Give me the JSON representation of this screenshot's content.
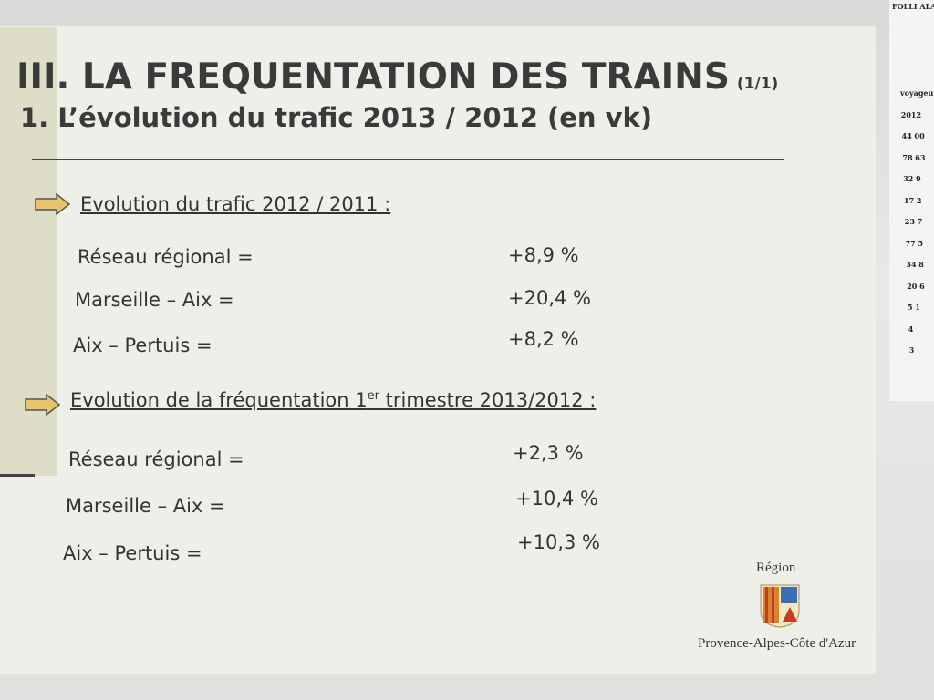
{
  "slide": {
    "title": "III. LA FREQUENTATION DES TRAINS",
    "title_suffix": "(1/1)",
    "subtitle": "1. L’évolution du trafic 2013 / 2012 (en vk)",
    "sections": [
      {
        "heading": "Evolution du trafic 2012 / 2011 :",
        "rows": [
          [
            "Réseau régional =",
            "+8,9 %"
          ],
          [
            "Marseille – Aix =",
            "+20,4 %"
          ],
          [
            "Aix – Pertuis =",
            "+8,2 %"
          ]
        ]
      },
      {
        "heading": "Evolution de la fréquentation 1",
        "heading_sup": "er",
        "heading_tail": " trimestre 2013/2012 :",
        "rows": [
          [
            "Réseau régional =",
            "+2,3 %"
          ],
          [
            "Marseille – Aix =",
            "+10,4 %"
          ],
          [
            "Aix – Pertuis =",
            "+10,3 %"
          ]
        ]
      }
    ],
    "logo": {
      "top": "Région",
      "bottom": "Provence-Alpes-Côte d'Azur"
    }
  },
  "side_sheet": {
    "header": "FOLLI ALA",
    "column": [
      "voyageu",
      "2012",
      "44 00",
      "78 63",
      "32 9",
      "17 2",
      "23 7",
      "77 5",
      "34 8",
      "20 6",
      "5 1",
      "4",
      "3"
    ]
  }
}
